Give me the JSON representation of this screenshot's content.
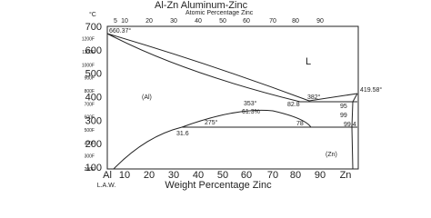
{
  "header": {
    "title": "Al-Zn   Aluminum-Zinc",
    "subtitle": "Atomic Percentage Zinc"
  },
  "top_axis": {
    "ticks": [
      "5",
      "10",
      "20",
      "30",
      "40",
      "50",
      "60",
      "70",
      "80",
      "90"
    ]
  },
  "left_axis": {
    "unit": "°C",
    "ticks": [
      "700",
      "600",
      "500",
      "400",
      "300",
      "200",
      "100"
    ],
    "f_ticks": [
      "1200F",
      "1100F",
      "1000F",
      "900F",
      "800F",
      "700F",
      "600F",
      "500F",
      "400F",
      "300F",
      "200F"
    ]
  },
  "bottom_axis": {
    "ticks": [
      "Al",
      "10",
      "20",
      "30",
      "40",
      "50",
      "60",
      "70",
      "80",
      "90",
      "Zn"
    ],
    "label": "Weight Percentage Zinc",
    "credit": "L.A.W."
  },
  "labels": {
    "al_melt": "660.37°",
    "liquid": "L",
    "al_phase": "(Al)",
    "dome_peak": "353°",
    "dome_comp": "61.3%",
    "eutectic_t": "382°",
    "eutectic_c": "82.8",
    "zn_melt": "419.58°",
    "c95": "95",
    "c99": "99",
    "c994": "99.4",
    "monotectoid_t": "275°",
    "c316": "31.6",
    "c78": "78",
    "zn_phase": "(Zn)"
  }
}
